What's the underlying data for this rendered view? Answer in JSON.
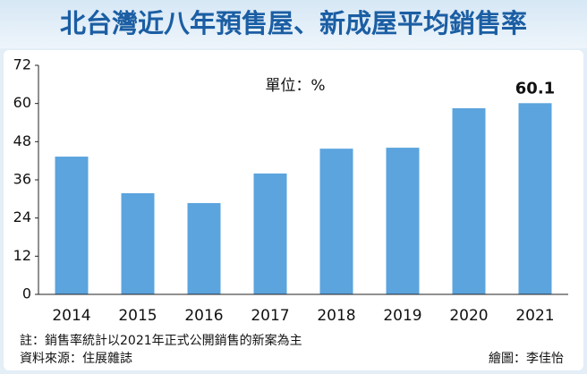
{
  "chart_data": {
    "type": "bar",
    "title": "北台灣近八年預售屋、新成屋平均銷售率",
    "unit_label": "單位：%",
    "categories": [
      "2014",
      "2015",
      "2016",
      "2017",
      "2018",
      "2019",
      "2020",
      "2021"
    ],
    "values": [
      43.3,
      31.8,
      28.7,
      38.0,
      45.8,
      46.1,
      58.5,
      60.1
    ],
    "value_labels": [
      null,
      null,
      null,
      null,
      null,
      null,
      null,
      "60.1"
    ],
    "color": "#5ba4de",
    "ylim": [
      0,
      72
    ],
    "yticks": [
      0,
      12,
      24,
      36,
      48,
      60,
      72
    ],
    "grid": false,
    "notes": [
      "註：銷售率統計以2021年正式公開銷售的新案為主",
      "資料來源：住展雜誌"
    ],
    "credit": "繪圖：李佳怡"
  }
}
